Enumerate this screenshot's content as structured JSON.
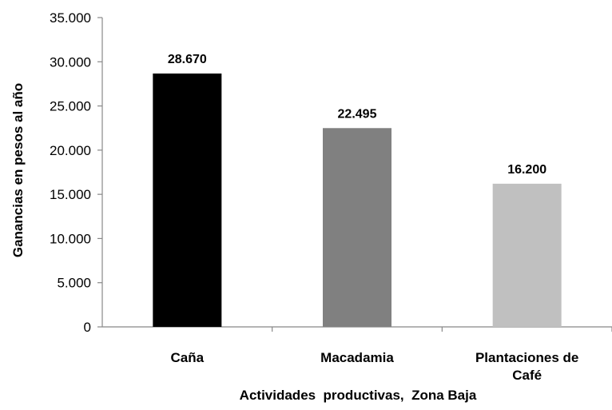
{
  "chart_data": {
    "type": "bar",
    "categories": [
      [
        "Caña"
      ],
      [
        "Macadamia"
      ],
      [
        "Plantaciones de",
        "Café"
      ]
    ],
    "values": [
      28670,
      22495,
      16200
    ],
    "data_labels": [
      "28.670",
      "22.495",
      "16.200"
    ],
    "bar_colors": [
      "#000000",
      "#808080",
      "#c0c0c0"
    ],
    "ylim": [
      0,
      35000
    ],
    "yticks": [
      0,
      5000,
      10000,
      15000,
      20000,
      25000,
      30000,
      35000
    ],
    "ytick_labels": [
      "0",
      "5.000",
      "10.000",
      "15.000",
      "20.000",
      "25.000",
      "30.000",
      "35.000"
    ],
    "xlabel": "Actividades  productivas,  Zona Baja",
    "ylabel": "Ganancias en pesos al año",
    "grid": false,
    "legend": "none"
  }
}
